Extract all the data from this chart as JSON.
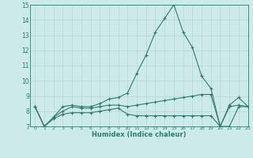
{
  "xlabel": "Humidex (Indice chaleur)",
  "background_color": "#cdeaea",
  "grid_color": "#b8d4d4",
  "line_color": "#2e7d6e",
  "xlim": [
    -0.5,
    23
  ],
  "ylim": [
    7,
    15
  ],
  "x": [
    0,
    1,
    2,
    3,
    4,
    5,
    6,
    7,
    8,
    9,
    10,
    11,
    12,
    13,
    14,
    15,
    16,
    17,
    18,
    19,
    20,
    21,
    22,
    23
  ],
  "line1": [
    8.3,
    7.0,
    7.6,
    8.3,
    8.4,
    8.3,
    8.3,
    8.5,
    8.8,
    8.9,
    9.2,
    10.5,
    11.7,
    13.2,
    14.1,
    15.0,
    13.2,
    12.2,
    10.3,
    9.5,
    7.0,
    8.4,
    8.9,
    8.3
  ],
  "line2": [
    8.3,
    7.0,
    7.6,
    8.0,
    8.3,
    8.2,
    8.2,
    8.3,
    8.4,
    8.4,
    8.3,
    8.4,
    8.5,
    8.6,
    8.7,
    8.8,
    8.9,
    9.0,
    9.1,
    9.1,
    7.0,
    8.3,
    8.4,
    8.3
  ],
  "line3": [
    8.3,
    7.0,
    7.5,
    7.8,
    7.9,
    7.9,
    7.9,
    8.0,
    8.1,
    8.2,
    7.8,
    7.7,
    7.7,
    7.7,
    7.7,
    7.7,
    7.7,
    7.7,
    7.7,
    7.7,
    7.0,
    7.0,
    8.3,
    8.3
  ],
  "xticks": [
    0,
    1,
    2,
    3,
    4,
    5,
    6,
    7,
    8,
    9,
    10,
    11,
    12,
    13,
    14,
    15,
    16,
    17,
    18,
    19,
    20,
    21,
    22,
    23
  ],
  "yticks": [
    7,
    8,
    9,
    10,
    11,
    12,
    13,
    14,
    15
  ]
}
